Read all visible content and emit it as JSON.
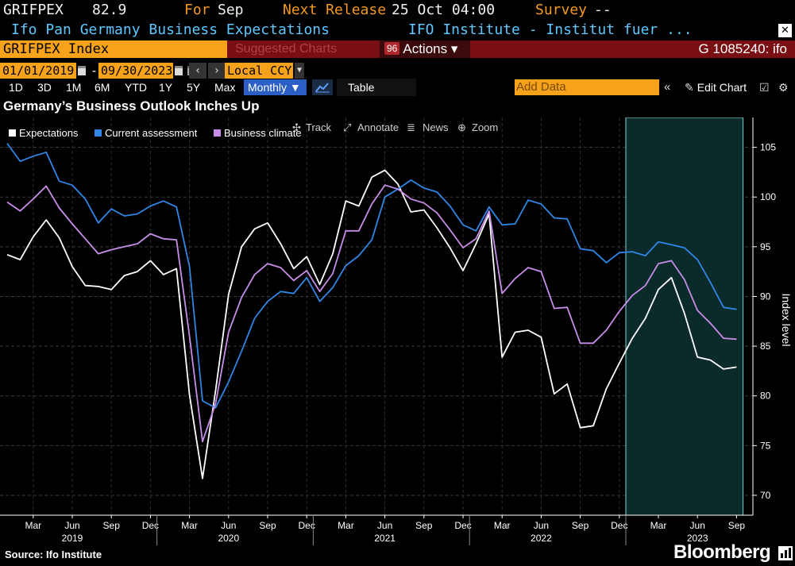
{
  "header": {
    "ticker": "GRIFPEX",
    "last_value": "82.9",
    "for_label": "For",
    "for_period": "Sep",
    "next_release_label": "Next Release",
    "next_release_value": "25 Oct 04:00",
    "survey_label": "Survey",
    "survey_value": "--",
    "description": "Ifo Pan Germany Business Expectations",
    "source_org": "IFO Institute - Institut fuer ..."
  },
  "toolbar": {
    "security": "GRIFPEX Index",
    "suggested": "Suggested Charts",
    "actions_num": "96",
    "actions": "Actions ▾",
    "security_id": "G 1085240: ifo",
    "start_date": "01/01/2019",
    "date_sep": "-",
    "end_date": "09/30/2023",
    "currency": "Local CCY",
    "back_icon": "‹",
    "fwd_icon": "›",
    "periods": [
      "1D",
      "3D",
      "1M",
      "6M",
      "YTD",
      "1Y",
      "5Y",
      "Max"
    ],
    "frequency": "Monthly ▼",
    "table": "Table",
    "add_data_placeholder": "Add Data",
    "collapse": "«",
    "edit_chart": "Edit Chart"
  },
  "chart_tools": {
    "track": "Track",
    "annotate": "Annotate",
    "news": "News",
    "zoom": "Zoom"
  },
  "footer": {
    "source": "Source: Ifo Institute",
    "brand": "Bloomberg"
  },
  "colors": {
    "expectations": "#ffffff",
    "current": "#2f86e6",
    "climate": "#c88de8",
    "highlight": "#0b2a2a",
    "highlight_border": "#7fd6d6"
  },
  "chart_data": {
    "type": "line",
    "title": "Germany’s Business Outlook Inches Up",
    "xlabel": "",
    "ylabel": "Index level",
    "ylim": [
      68,
      108
    ],
    "yticks": [
      70,
      75,
      80,
      85,
      90,
      95,
      100,
      105
    ],
    "x_start": "2019-01",
    "x_end": "2023-09",
    "month_ticks": [
      {
        "label": "Mar",
        "i": 2
      },
      {
        "label": "Jun",
        "i": 5
      },
      {
        "label": "Sep",
        "i": 8
      },
      {
        "label": "Dec",
        "i": 11
      },
      {
        "label": "Mar",
        "i": 14
      },
      {
        "label": "Jun",
        "i": 17
      },
      {
        "label": "Sep",
        "i": 20
      },
      {
        "label": "Dec",
        "i": 23
      },
      {
        "label": "Mar",
        "i": 26
      },
      {
        "label": "Jun",
        "i": 29
      },
      {
        "label": "Sep",
        "i": 32
      },
      {
        "label": "Dec",
        "i": 35
      },
      {
        "label": "Mar",
        "i": 38
      },
      {
        "label": "Jun",
        "i": 41
      },
      {
        "label": "Sep",
        "i": 44
      },
      {
        "label": "Dec",
        "i": 47
      },
      {
        "label": "Mar",
        "i": 50
      },
      {
        "label": "Jun",
        "i": 53
      },
      {
        "label": "Sep",
        "i": 56
      }
    ],
    "year_ticks": [
      {
        "label": "2019",
        "i": 5
      },
      {
        "label": "2020",
        "i": 17
      },
      {
        "label": "2021",
        "i": 29
      },
      {
        "label": "2022",
        "i": 41
      },
      {
        "label": "2023",
        "i": 53
      }
    ],
    "year_dividers": [
      11.5,
      23.5,
      35.5,
      47.5
    ],
    "shaded_region": [
      47.5,
      56.5
    ],
    "legend": {
      "position": "top-left"
    },
    "series": [
      {
        "name": "Expectations",
        "color": "#ffffff",
        "values": [
          94.2,
          93.7,
          96.0,
          97.7,
          95.9,
          93.0,
          91.1,
          91.0,
          90.7,
          92.1,
          92.5,
          93.6,
          92.2,
          92.8,
          80.1,
          71.7,
          80.5,
          90.2,
          95.0,
          96.8,
          97.4,
          95.3,
          92.8,
          94.0,
          91.2,
          94.3,
          99.6,
          99.1,
          102.0,
          102.7,
          101.3,
          98.5,
          98.7,
          96.9,
          94.9,
          92.6,
          95.3,
          98.3,
          83.9,
          86.4,
          86.6,
          85.9,
          80.2,
          81.2,
          76.8,
          77.0,
          80.7,
          83.3,
          85.8,
          87.8,
          90.7,
          91.9,
          88.3,
          83.9,
          83.6,
          82.7,
          82.9
        ]
      },
      {
        "name": "Current assessment",
        "color": "#2f86e6",
        "values": [
          105.4,
          103.6,
          104.1,
          104.5,
          101.6,
          101.2,
          99.8,
          97.4,
          98.8,
          98.1,
          98.3,
          99.1,
          99.6,
          99.0,
          93.0,
          79.5,
          78.8,
          81.4,
          84.5,
          87.8,
          89.5,
          90.5,
          90.3,
          91.9,
          89.5,
          90.9,
          93.1,
          94.1,
          95.7,
          100.0,
          100.8,
          101.7,
          100.9,
          100.5,
          99.1,
          97.2,
          96.6,
          99.0,
          97.2,
          97.3,
          99.7,
          99.3,
          97.9,
          97.8,
          94.8,
          94.6,
          93.4,
          94.4,
          94.5,
          94.1,
          95.5,
          95.2,
          94.9,
          93.7,
          91.4,
          88.9,
          88.7
        ]
      },
      {
        "name": "Business climate",
        "color": "#c88de8",
        "values": [
          99.5,
          98.6,
          99.8,
          101.1,
          98.9,
          97.3,
          95.8,
          94.3,
          94.7,
          95.0,
          95.3,
          96.3,
          95.8,
          95.7,
          86.0,
          75.4,
          79.2,
          86.4,
          89.9,
          92.2,
          93.3,
          92.9,
          91.6,
          92.6,
          90.5,
          92.3,
          96.6,
          96.6,
          99.3,
          101.2,
          100.8,
          99.8,
          99.4,
          98.4,
          96.7,
          94.9,
          95.8,
          98.6,
          90.3,
          91.8,
          92.9,
          92.5,
          88.8,
          88.9,
          85.3,
          85.3,
          86.6,
          88.5,
          90.1,
          91.1,
          93.3,
          93.6,
          91.7,
          88.6,
          87.3,
          85.8,
          85.7
        ]
      }
    ]
  }
}
